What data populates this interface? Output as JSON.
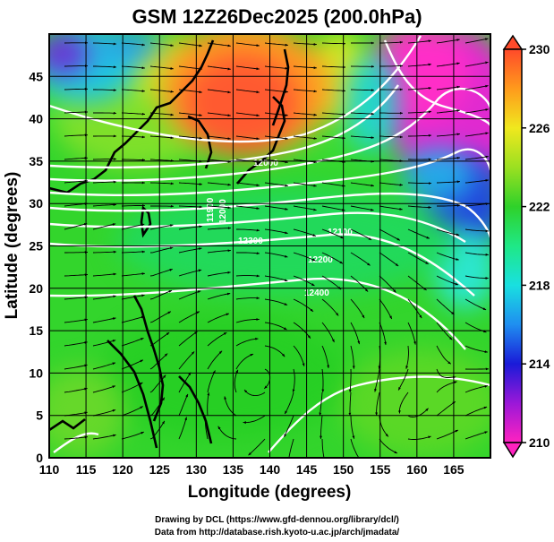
{
  "title": "GSM 12Z26Dec2025 (200.0hPa)",
  "x_axis": {
    "label": "Longitude (degrees)",
    "range": [
      110,
      170
    ],
    "ticks": [
      "110",
      "115",
      "120",
      "125",
      "130",
      "135",
      "140",
      "145",
      "150",
      "155",
      "160",
      "165"
    ]
  },
  "y_axis": {
    "label": "Latitude (degrees)",
    "range": [
      0,
      50
    ],
    "ticks": [
      "0",
      "5",
      "10",
      "15",
      "20",
      "25",
      "30",
      "35",
      "40",
      "45"
    ]
  },
  "colorbar": {
    "ticks": [
      "210",
      "214",
      "218",
      "222",
      "226",
      "230"
    ],
    "range": [
      210,
      230
    ],
    "stops": [
      {
        "v": 210,
        "color": "#ff22c0"
      },
      {
        "v": 212,
        "color": "#9b18d8"
      },
      {
        "v": 214,
        "color": "#1a1ad8"
      },
      {
        "v": 216,
        "color": "#1f8ef0"
      },
      {
        "v": 218,
        "color": "#19e0e0"
      },
      {
        "v": 220,
        "color": "#1fe886"
      },
      {
        "v": 222,
        "color": "#2fd12a"
      },
      {
        "v": 224,
        "color": "#9be021"
      },
      {
        "v": 226,
        "color": "#f0e81e"
      },
      {
        "v": 228,
        "color": "#ff9a1c"
      },
      {
        "v": 230,
        "color": "#ff4a2a"
      }
    ]
  },
  "contour_labels": [
    "12000",
    "11900",
    "12000",
    "12100",
    "12200",
    "12300",
    "12400"
  ],
  "credits": [
    "Drawing by DCL (https://www.gfd-dennou.org/library/dcl/)",
    "Data from http://database.rish.kyoto-u.ac.jp/arch/jmadata/"
  ]
}
